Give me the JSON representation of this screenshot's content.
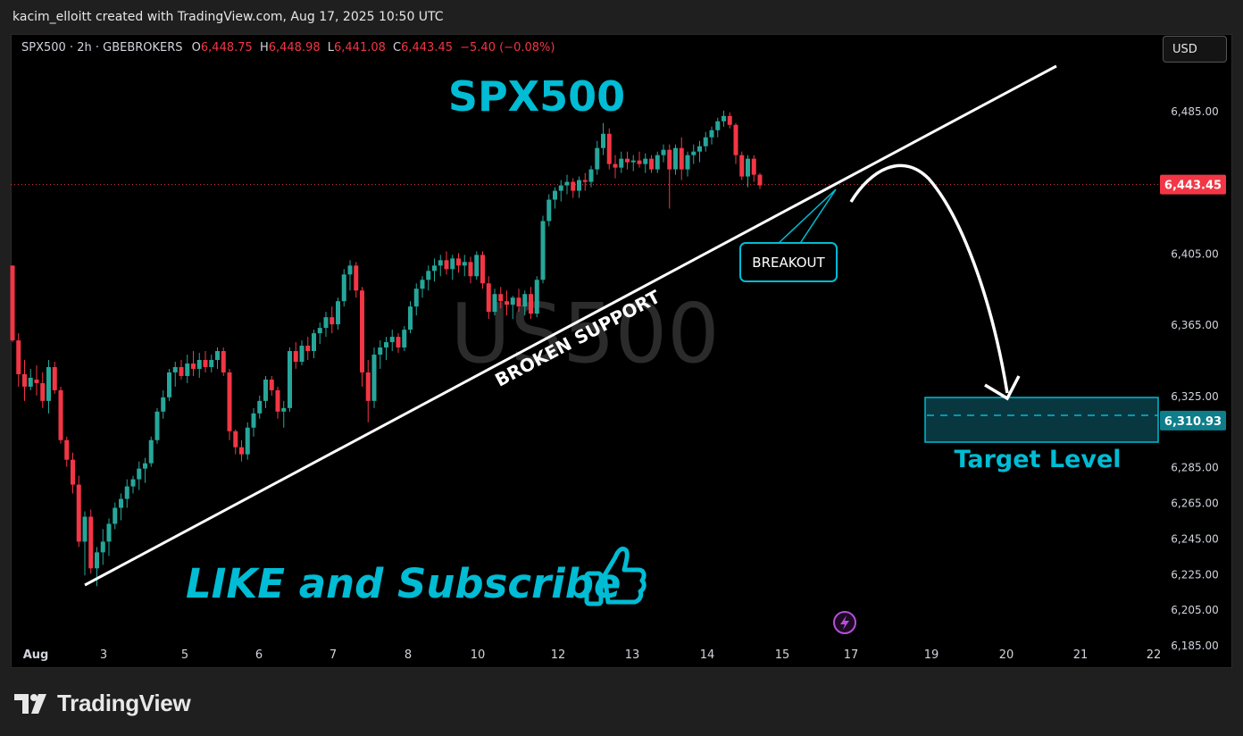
{
  "header": {
    "credit": "kacim_elloitt created with TradingView.com, Aug 17, 2025 10:50 UTC"
  },
  "legend": {
    "symbol": "SPX500 · 2h · GBEBROKERS",
    "o_label": "O",
    "o_value": "6,448.75",
    "h_label": "H",
    "h_value": "6,448.98",
    "l_label": "L",
    "l_value": "6,441.08",
    "c_label": "C",
    "c_value": "6,443.45",
    "change": "−5.40 (−0.08%)"
  },
  "currency": "USD",
  "watermark": "US500",
  "annotations": {
    "title": "SPX500",
    "broken_support": "BROKEN SUPPORT",
    "breakout": "BREAKOUT",
    "target_level": "Target Level",
    "like_subscribe": "LIKE and Subscribe"
  },
  "brand": {
    "name": "TradingView"
  },
  "colors": {
    "up": "#26a69a",
    "down": "#f23645",
    "accent": "#00bcd4",
    "target_box": "#0b4a55"
  },
  "icons": {
    "thumbs_up": "thumbs-up-icon",
    "lightning": "lightning-icon",
    "logo": "tradingview-logo-icon"
  },
  "chart_data": {
    "type": "candlestick",
    "title": "SPX500",
    "x_ticks": [
      "Aug",
      "3",
      "5",
      "6",
      "7",
      "8",
      "10",
      "12",
      "13",
      "14",
      "15",
      "17",
      "19",
      "20",
      "21",
      "22"
    ],
    "y_ticks": [
      6485,
      6405,
      6365,
      6325,
      6285,
      6265,
      6245,
      6225,
      6205,
      6185
    ],
    "y_tick_labels": [
      "6,485.00",
      "6,405.00",
      "6,365.00",
      "6,325.00",
      "6,285.00",
      "6,265.00",
      "6,245.00",
      "6,225.00",
      "6,205.00",
      "6,185.00"
    ],
    "ylim": [
      6177,
      6513
    ],
    "last_price": 6443.45,
    "last_price_label": "6,443.45",
    "target_price": 6310.93,
    "target_price_label": "6,310.93",
    "target_zone": [
      6295,
      6322
    ],
    "support_line": {
      "start": {
        "bar": 0,
        "price": 6213
      },
      "end": {
        "bar": 133,
        "price": 6521
      }
    },
    "projected_path": "curved drop from ~6,460 after Aug 17 to target ~6,320 near Aug 20",
    "candles": [
      [
        6398,
        6398,
        6355,
        6356
      ],
      [
        6356,
        6360,
        6330,
        6337
      ],
      [
        6337,
        6345,
        6322,
        6330
      ],
      [
        6330,
        6340,
        6328,
        6335
      ],
      [
        6334,
        6342,
        6325,
        6332
      ],
      [
        6332,
        6338,
        6318,
        6322
      ],
      [
        6322,
        6345,
        6315,
        6341
      ],
      [
        6341,
        6344,
        6326,
        6328
      ],
      [
        6328,
        6330,
        6298,
        6300
      ],
      [
        6300,
        6302,
        6285,
        6289
      ],
      [
        6289,
        6293,
        6270,
        6275
      ],
      [
        6275,
        6280,
        6240,
        6243
      ],
      [
        6243,
        6260,
        6224,
        6257
      ],
      [
        6257,
        6261,
        6225,
        6228
      ],
      [
        6228,
        6240,
        6218,
        6237
      ],
      [
        6237,
        6250,
        6230,
        6243
      ],
      [
        6243,
        6256,
        6235,
        6253
      ],
      [
        6253,
        6265,
        6250,
        6262
      ],
      [
        6262,
        6270,
        6255,
        6267
      ],
      [
        6267,
        6278,
        6262,
        6274
      ],
      [
        6274,
        6280,
        6270,
        6278
      ],
      [
        6278,
        6288,
        6272,
        6284
      ],
      [
        6284,
        6290,
        6276,
        6287
      ],
      [
        6287,
        6302,
        6285,
        6300
      ],
      [
        6300,
        6318,
        6298,
        6316
      ],
      [
        6316,
        6328,
        6312,
        6324
      ],
      [
        6324,
        6340,
        6322,
        6338
      ],
      [
        6338,
        6344,
        6330,
        6341
      ],
      [
        6341,
        6345,
        6334,
        6336
      ],
      [
        6336,
        6348,
        6332,
        6343
      ],
      [
        6343,
        6350,
        6336,
        6340
      ],
      [
        6340,
        6349,
        6335,
        6345
      ],
      [
        6345,
        6350,
        6338,
        6341
      ],
      [
        6341,
        6348,
        6338,
        6345
      ],
      [
        6345,
        6352,
        6340,
        6350
      ],
      [
        6350,
        6352,
        6336,
        6338
      ],
      [
        6338,
        6340,
        6300,
        6305
      ],
      [
        6305,
        6306,
        6292,
        6296
      ],
      [
        6296,
        6300,
        6288,
        6292
      ],
      [
        6292,
        6310,
        6289,
        6307
      ],
      [
        6307,
        6318,
        6302,
        6315
      ],
      [
        6315,
        6325,
        6312,
        6322
      ],
      [
        6322,
        6336,
        6318,
        6334
      ],
      [
        6334,
        6336,
        6325,
        6328
      ],
      [
        6328,
        6330,
        6312,
        6316
      ],
      [
        6316,
        6322,
        6307,
        6318
      ],
      [
        6318,
        6352,
        6316,
        6350
      ],
      [
        6350,
        6355,
        6340,
        6344
      ],
      [
        6344,
        6356,
        6342,
        6353
      ],
      [
        6353,
        6358,
        6345,
        6350
      ],
      [
        6350,
        6362,
        6346,
        6360
      ],
      [
        6360,
        6366,
        6354,
        6363
      ],
      [
        6363,
        6372,
        6358,
        6369
      ],
      [
        6369,
        6375,
        6360,
        6365
      ],
      [
        6365,
        6380,
        6362,
        6378
      ],
      [
        6378,
        6396,
        6375,
        6393
      ],
      [
        6393,
        6401,
        6384,
        6398
      ],
      [
        6398,
        6400,
        6380,
        6384
      ],
      [
        6384,
        6386,
        6330,
        6338
      ],
      [
        6338,
        6345,
        6310,
        6322
      ],
      [
        6322,
        6352,
        6318,
        6348
      ],
      [
        6348,
        6356,
        6340,
        6352
      ],
      [
        6352,
        6358,
        6345,
        6355
      ],
      [
        6355,
        6362,
        6350,
        6358
      ],
      [
        6358,
        6360,
        6349,
        6352
      ],
      [
        6352,
        6364,
        6350,
        6362
      ],
      [
        6362,
        6378,
        6360,
        6375
      ],
      [
        6375,
        6388,
        6370,
        6385
      ],
      [
        6385,
        6392,
        6380,
        6390
      ],
      [
        6390,
        6398,
        6384,
        6395
      ],
      [
        6395,
        6402,
        6389,
        6398
      ],
      [
        6398,
        6404,
        6392,
        6401
      ],
      [
        6401,
        6406,
        6393,
        6396
      ],
      [
        6396,
        6404,
        6390,
        6402
      ],
      [
        6402,
        6405,
        6394,
        6398
      ],
      [
        6398,
        6404,
        6392,
        6400
      ],
      [
        6400,
        6403,
        6388,
        6392
      ],
      [
        6392,
        6406,
        6390,
        6404
      ],
      [
        6404,
        6406,
        6385,
        6388
      ],
      [
        6388,
        6392,
        6368,
        6372
      ],
      [
        6372,
        6385,
        6370,
        6382
      ],
      [
        6382,
        6386,
        6374,
        6378
      ],
      [
        6378,
        6384,
        6370,
        6376
      ],
      [
        6376,
        6381,
        6368,
        6380
      ],
      [
        6380,
        6385,
        6372,
        6375
      ],
      [
        6375,
        6384,
        6370,
        6382
      ],
      [
        6382,
        6386,
        6368,
        6371
      ],
      [
        6371,
        6392,
        6369,
        6390
      ],
      [
        6390,
        6426,
        6388,
        6423
      ],
      [
        6423,
        6438,
        6420,
        6435
      ],
      [
        6435,
        6442,
        6430,
        6440
      ],
      [
        6440,
        6446,
        6434,
        6443
      ],
      [
        6443,
        6449,
        6438,
        6445
      ],
      [
        6445,
        6447,
        6436,
        6440
      ],
      [
        6440,
        6448,
        6436,
        6446
      ],
      [
        6446,
        6450,
        6440,
        6445
      ],
      [
        6445,
        6454,
        6442,
        6452
      ],
      [
        6452,
        6468,
        6449,
        6464
      ],
      [
        6464,
        6478,
        6460,
        6472
      ],
      [
        6472,
        6475,
        6452,
        6455
      ],
      [
        6455,
        6460,
        6447,
        6453
      ],
      [
        6453,
        6462,
        6450,
        6458
      ],
      [
        6458,
        6462,
        6452,
        6456
      ],
      [
        6456,
        6460,
        6451,
        6457
      ],
      [
        6457,
        6462,
        6453,
        6455
      ],
      [
        6455,
        6461,
        6450,
        6458
      ],
      [
        6458,
        6460,
        6450,
        6452
      ],
      [
        6452,
        6462,
        6450,
        6460
      ],
      [
        6460,
        6466,
        6456,
        6463
      ],
      [
        6463,
        6466,
        6430,
        6452
      ],
      [
        6452,
        6466,
        6449,
        6464
      ],
      [
        6464,
        6470,
        6446,
        6452
      ],
      [
        6452,
        6462,
        6448,
        6460
      ],
      [
        6460,
        6466,
        6455,
        6462
      ],
      [
        6462,
        6468,
        6456,
        6465
      ],
      [
        6465,
        6473,
        6462,
        6470
      ],
      [
        6470,
        6476,
        6466,
        6474
      ],
      [
        6474,
        6481,
        6470,
        6479
      ],
      [
        6479,
        6485,
        6476,
        6482
      ],
      [
        6482,
        6484,
        6475,
        6477
      ],
      [
        6477,
        6478,
        6455,
        6460
      ],
      [
        6460,
        6462,
        6446,
        6448
      ],
      [
        6448,
        6460,
        6442,
        6458
      ],
      [
        6458,
        6460,
        6445,
        6449
      ],
      [
        6449,
        6450,
        6441,
        6443
      ]
    ]
  }
}
